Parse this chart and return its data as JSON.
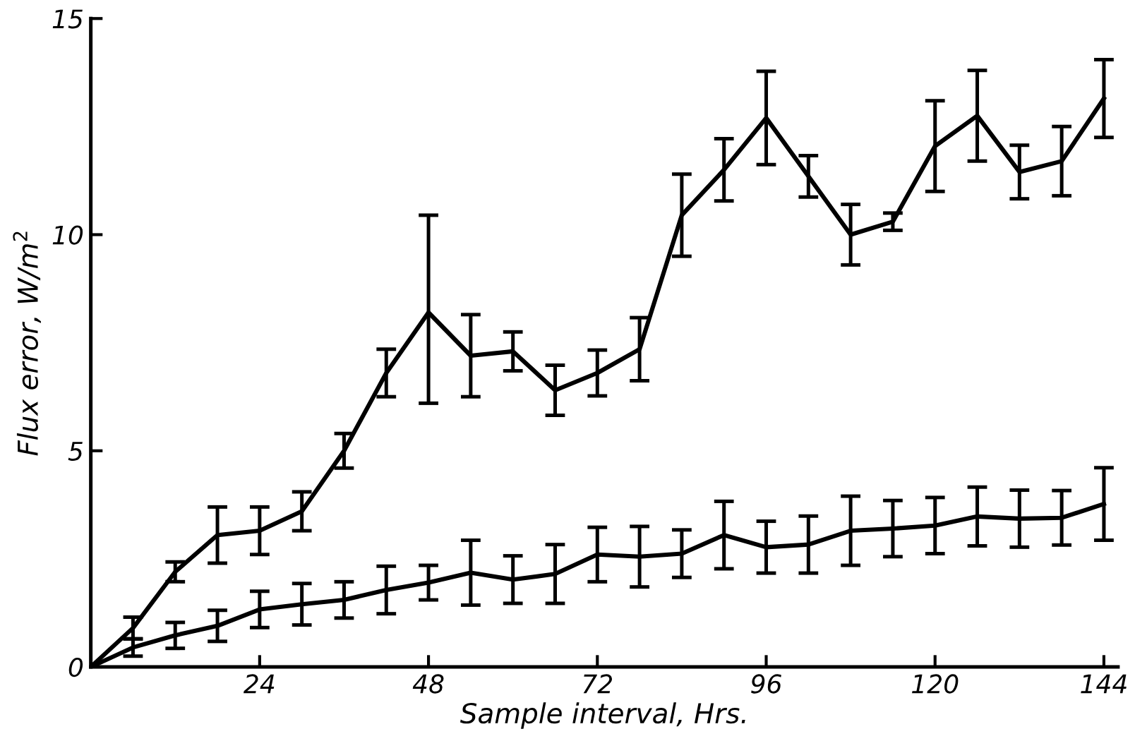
{
  "chart_data": {
    "type": "line",
    "xlabel": "Sample interval, Hrs.",
    "ylabel": "Flux error, W/m$^{2}$",
    "x": [
      0,
      6,
      12,
      18,
      24,
      30,
      36,
      42,
      48,
      54,
      60,
      66,
      72,
      78,
      84,
      90,
      96,
      102,
      108,
      114,
      120,
      126,
      132,
      138,
      144
    ],
    "series": [
      {
        "color": "#000000",
        "values": [
          0,
          0.9,
          2.2,
          3.05,
          3.15,
          3.6,
          5.0,
          6.8,
          8.2,
          7.2,
          7.3,
          6.4,
          6.8,
          7.35,
          10.45,
          11.5,
          12.7,
          11.35,
          10.0,
          10.3,
          12.05,
          12.75,
          11.45,
          11.7,
          13.15
        ],
        "errors": [
          null,
          0.25,
          0.23,
          0.65,
          0.55,
          0.45,
          0.4,
          0.55,
          [
            6.1,
            10.45
          ],
          0.95,
          0.45,
          0.58,
          0.53,
          0.73,
          0.95,
          0.72,
          1.08,
          0.48,
          0.7,
          0.2,
          1.05,
          1.05,
          0.62,
          0.8,
          0.9
        ]
      },
      {
        "color": "#000000",
        "values": [
          0,
          0.45,
          0.73,
          0.95,
          1.33,
          1.45,
          1.55,
          1.78,
          1.95,
          2.18,
          2.02,
          2.15,
          2.6,
          2.55,
          2.62,
          3.05,
          2.77,
          2.83,
          3.15,
          3.2,
          3.27,
          3.48,
          3.43,
          3.45,
          3.77
        ],
        "errors": [
          null,
          0.2,
          0.3,
          0.36,
          0.42,
          0.48,
          0.42,
          0.55,
          0.4,
          0.75,
          0.55,
          0.68,
          0.63,
          0.7,
          0.55,
          0.78,
          0.6,
          0.66,
          0.8,
          0.65,
          0.65,
          0.68,
          0.66,
          0.63,
          0.84
        ]
      }
    ],
    "xlim": [
      0,
      146
    ],
    "ylim": [
      0,
      15
    ],
    "xticks": [
      24,
      48,
      72,
      96,
      120,
      144
    ],
    "yticks": [
      0,
      5,
      10,
      15
    ],
    "grid": false,
    "legend": false,
    "marker": "none",
    "line_style": "solid"
  }
}
